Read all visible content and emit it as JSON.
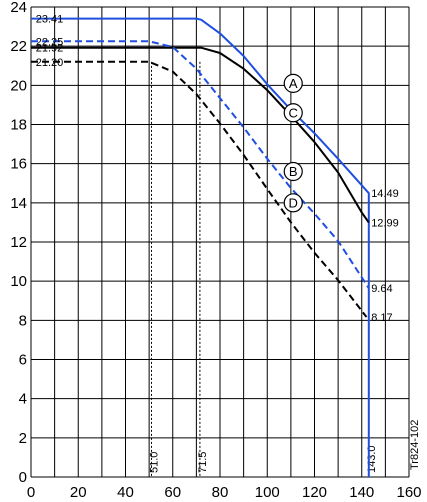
{
  "chart_data": {
    "type": "line",
    "title": "",
    "xlabel": "",
    "ylabel": "",
    "xlim": [
      0,
      160
    ],
    "ylim": [
      0,
      24
    ],
    "x_ticks": [
      "0",
      "20",
      "40",
      "60",
      "80",
      "100",
      "120",
      "140",
      "160"
    ],
    "y_ticks": [
      "0",
      "2",
      "4",
      "6",
      "8",
      "10",
      "12",
      "14",
      "16",
      "18",
      "20",
      "22",
      "24"
    ],
    "grid": true,
    "series": [
      {
        "name": "A",
        "color": "#1f4fe0",
        "dash": false,
        "points": [
          [
            0,
            23.41
          ],
          [
            70,
            23.41
          ],
          [
            72,
            23.35
          ],
          [
            80,
            22.65
          ],
          [
            90,
            21.5
          ],
          [
            100,
            20.05
          ],
          [
            110,
            18.75
          ],
          [
            120,
            17.55
          ],
          [
            130,
            16.25
          ],
          [
            143,
            14.49
          ],
          [
            143,
            0
          ]
        ]
      },
      {
        "name": "C",
        "color": "#000000",
        "dash": false,
        "points": [
          [
            0,
            21.92
          ],
          [
            72,
            21.92
          ],
          [
            80,
            21.65
          ],
          [
            90,
            20.85
          ],
          [
            100,
            19.75
          ],
          [
            110,
            18.45
          ],
          [
            120,
            17.1
          ],
          [
            130,
            15.55
          ],
          [
            140,
            13.5
          ],
          [
            143,
            12.99
          ]
        ]
      },
      {
        "name": "B",
        "color": "#1f4fe0",
        "dash": true,
        "points": [
          [
            0,
            22.25
          ],
          [
            50,
            22.25
          ],
          [
            60,
            21.95
          ],
          [
            70,
            20.85
          ],
          [
            80,
            19.35
          ],
          [
            90,
            17.85
          ],
          [
            100,
            16.25
          ],
          [
            110,
            14.75
          ],
          [
            120,
            13.45
          ],
          [
            130,
            12.05
          ],
          [
            143,
            9.64
          ]
        ]
      },
      {
        "name": "D",
        "color": "#000000",
        "dash": true,
        "points": [
          [
            0,
            21.2
          ],
          [
            50,
            21.2
          ],
          [
            60,
            20.7
          ],
          [
            70,
            19.55
          ],
          [
            80,
            18.05
          ],
          [
            90,
            16.45
          ],
          [
            100,
            14.7
          ],
          [
            110,
            13.0
          ],
          [
            120,
            11.45
          ],
          [
            130,
            10.05
          ],
          [
            142,
            8.17
          ]
        ]
      }
    ],
    "annotations": {
      "value_labels": [
        {
          "text": "23.41",
          "x": 2,
          "y": 23.41
        },
        {
          "text": "22.25",
          "x": 2,
          "y": 22.25
        },
        {
          "text": "21.92",
          "x": 2,
          "y": 21.92
        },
        {
          "text": "21.20",
          "x": 2,
          "y": 21.2
        },
        {
          "text": "14.49",
          "x": 144,
          "y": 14.49
        },
        {
          "text": "12.99",
          "x": 144,
          "y": 12.99
        },
        {
          "text": "9.64",
          "x": 144,
          "y": 9.64
        },
        {
          "text": "8.17",
          "x": 144,
          "y": 8.17
        }
      ],
      "vertical_markers": [
        {
          "text": "51.0",
          "x": 51.0,
          "rotated": true
        },
        {
          "text": "71.5",
          "x": 71.5,
          "rotated": true
        },
        {
          "text": "143.0",
          "x": 143.0,
          "rotated": true
        }
      ],
      "circle_labels": [
        {
          "text": "A",
          "x": 111,
          "y": 20.1
        },
        {
          "text": "C",
          "x": 111,
          "y": 18.6
        },
        {
          "text": "B",
          "x": 111,
          "y": 15.6
        },
        {
          "text": "D",
          "x": 111,
          "y": 14.0
        }
      ],
      "figure_id": "Tr824-102"
    }
  }
}
